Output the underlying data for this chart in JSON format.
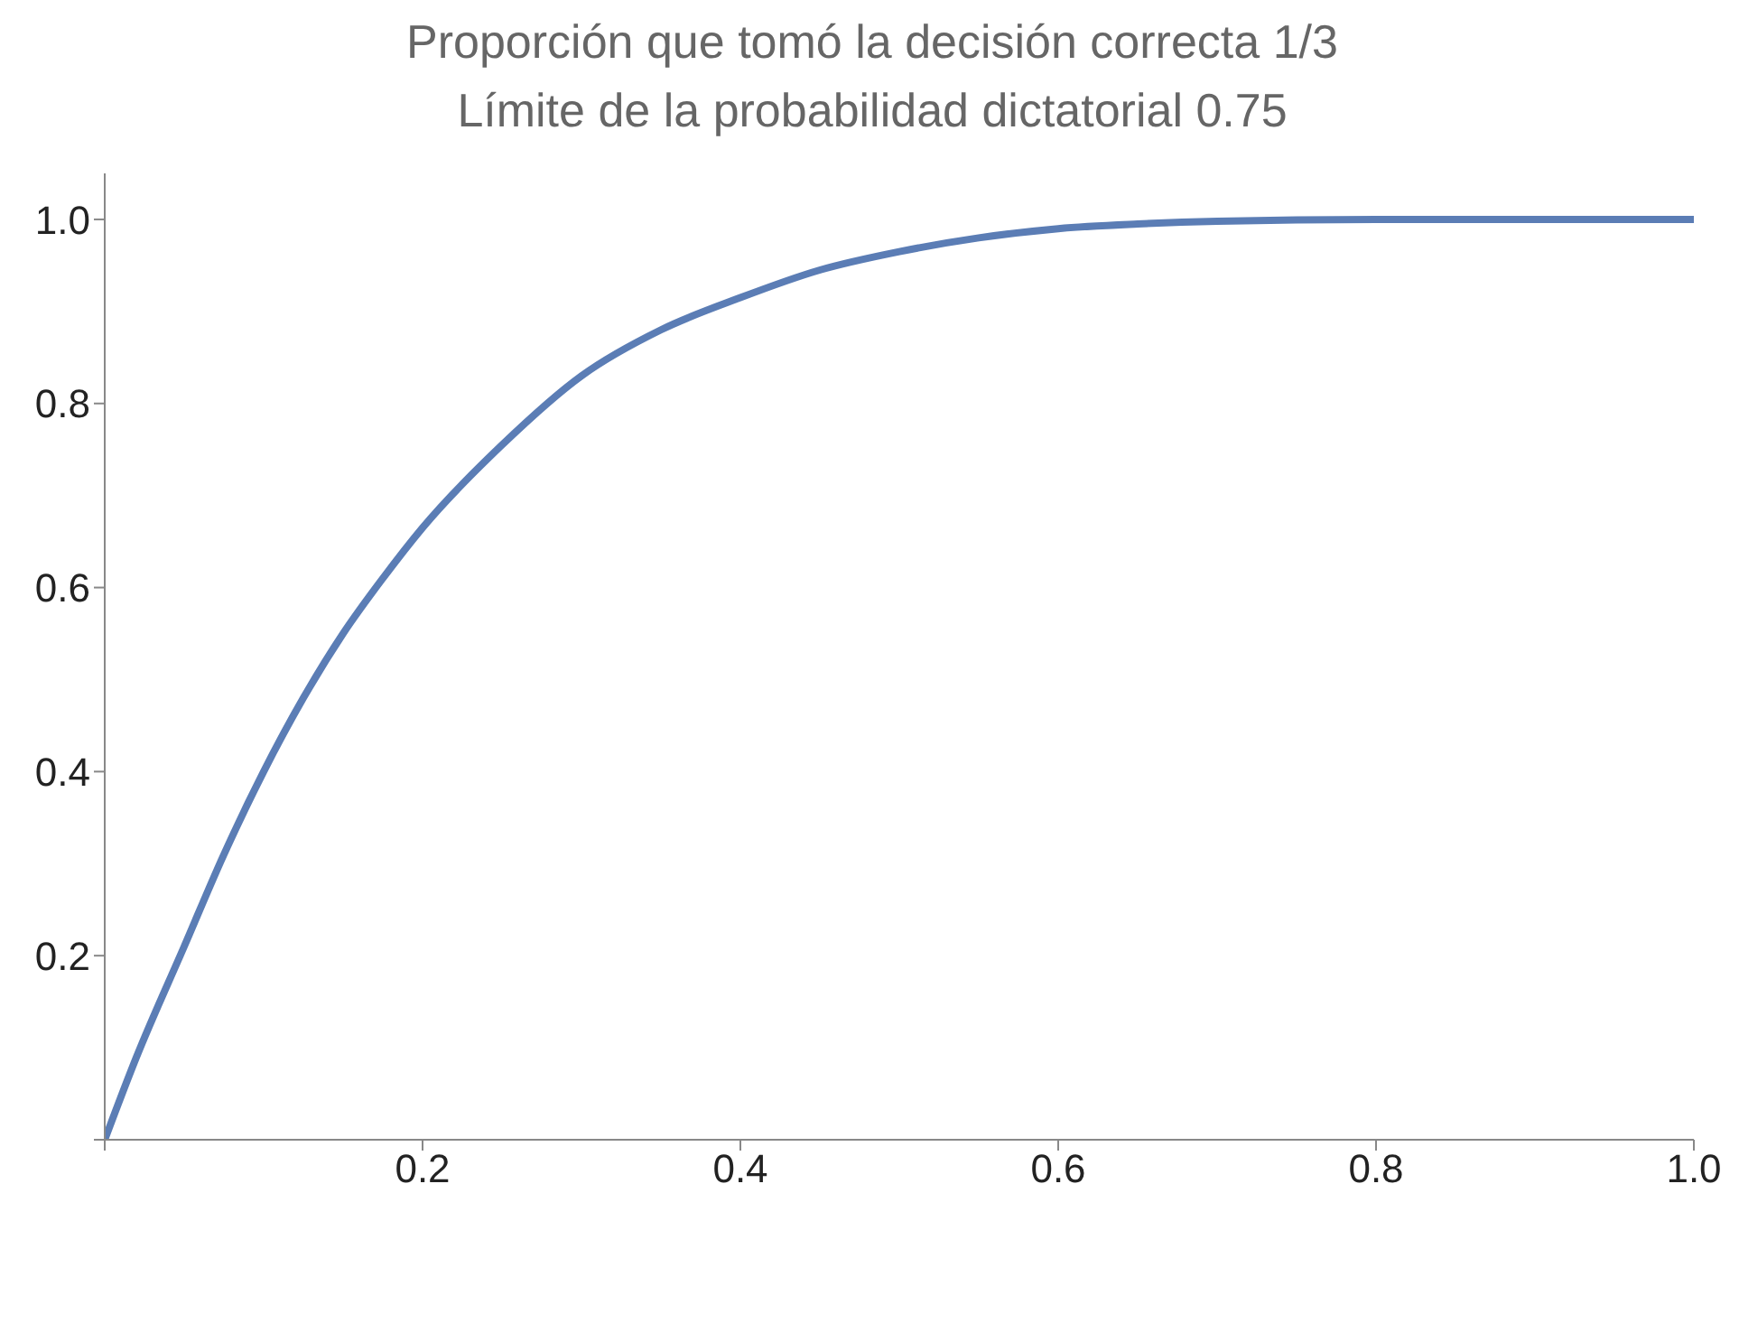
{
  "chart_data": {
    "type": "line",
    "title": "Proporción que tomó la decisión correcta 1/3",
    "subtitle": "Límite de la probabilidad dictatorial 0.75",
    "x": [
      0,
      0.02,
      0.05,
      0.075,
      0.1,
      0.125,
      0.15,
      0.175,
      0.2,
      0.25,
      0.3,
      0.35,
      0.4,
      0.45,
      0.5,
      0.55,
      0.6,
      0.65,
      0.7,
      0.8,
      0.9,
      1.0
    ],
    "series": [
      {
        "color": "#5b7db5",
        "values": [
          0,
          0.09,
          0.21,
          0.31,
          0.4,
          0.48,
          0.55,
          0.61,
          0.665,
          0.755,
          0.83,
          0.88,
          0.915,
          0.945,
          0.965,
          0.98,
          0.99,
          0.995,
          0.998,
          1.0,
          1.0,
          1.0
        ]
      }
    ],
    "xlim": [
      0,
      1.0
    ],
    "xticks": [
      {
        "value": 0,
        "label": null
      },
      0.2,
      0.4,
      0.6,
      0.8,
      {
        "value": 1,
        "label": "1.0"
      }
    ],
    "ylim": [
      0,
      1.05
    ],
    "yticks": [
      {
        "value": 0,
        "label": null
      },
      0.2,
      0.4,
      0.6,
      0.8,
      {
        "value": 1,
        "label": "1.0"
      }
    ],
    "grid": false,
    "marker": "none",
    "line_style": "solid"
  }
}
